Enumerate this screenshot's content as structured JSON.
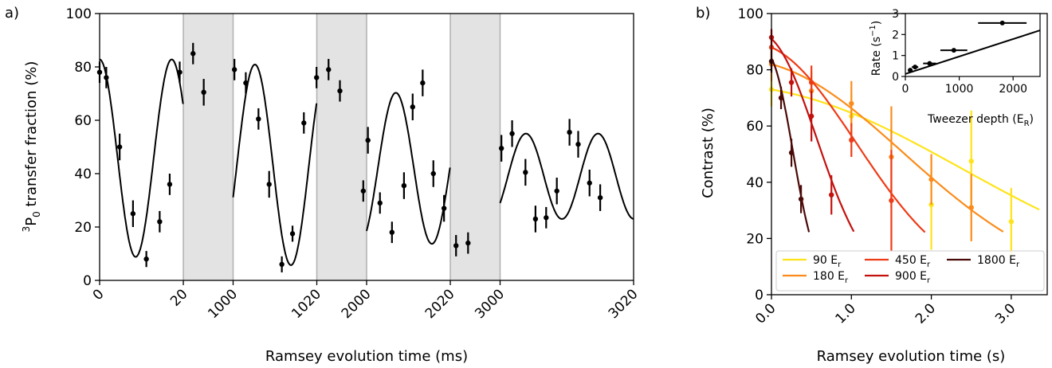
{
  "chart_data": [
    {
      "panel": "a)",
      "type": "scatter",
      "xlabel": "Ramsey evolution time (ms)",
      "ylabel_sup": "3",
      "ylabel_main": "P",
      "ylabel_sub": "0",
      "ylabel_rest": " transfer fraction (%)",
      "ylim": [
        0,
        100
      ],
      "yticks": [
        "0",
        "20",
        "40",
        "60",
        "80",
        "100"
      ],
      "xticks": [
        "0",
        "20",
        "1000",
        "1020",
        "2000",
        "2020",
        "3000",
        "3020"
      ],
      "segments": [
        {
          "x": [
            0,
            20
          ],
          "points": [
            [
              0,
              78
            ],
            [
              1,
              76
            ],
            [
              3,
              50
            ],
            [
              5,
              25
            ],
            [
              7,
              8
            ],
            [
              9,
              22
            ],
            [
              10.5,
              36
            ],
            [
              12,
              78
            ],
            [
              14,
              85
            ],
            [
              15.6,
              70.5
            ]
          ],
          "errs": [
            4,
            4,
            5,
            5,
            3,
            4,
            4,
            4,
            4,
            5
          ],
          "fit": {
            "mean": 45.8,
            "amp": 37.0,
            "phase": 0,
            "period": 10.8,
            "decay": 0,
            "xstart": 0.0,
            "xend": 20.0
          }
        },
        {
          "x": [
            1000,
            1020
          ],
          "points": [
            [
              1000.2,
              79
            ],
            [
              1001.9,
              74
            ],
            [
              1003.8,
              60.5
            ],
            [
              1005.4,
              36
            ],
            [
              1007.3,
              6
            ],
            [
              1008.9,
              17.5
            ],
            [
              1010.6,
              59
            ],
            [
              1012.5,
              76
            ],
            [
              1014.3,
              79
            ],
            [
              1016.0,
              71
            ],
            [
              1019.5,
              33.5
            ]
          ],
          "errs": [
            4,
            4,
            4,
            5,
            3,
            3,
            4,
            4,
            4,
            4,
            4
          ],
          "fit": {
            "mean": 43.3,
            "amp": 37.6,
            "phase": -1.9,
            "period": 10.8,
            "decay": 0,
            "xstart": 1000.0,
            "xend": 1020.0
          }
        },
        {
          "x": [
            2000,
            2020
          ],
          "points": [
            [
              2000.2,
              52.5
            ],
            [
              2002.0,
              29
            ],
            [
              2003.8,
              18
            ],
            [
              2005.6,
              35.5
            ],
            [
              2006.9,
              65
            ],
            [
              2008.4,
              74
            ],
            [
              2010.0,
              40
            ],
            [
              2011.6,
              27
            ],
            [
              2013.4,
              13
            ],
            [
              2015.2,
              14
            ]
          ],
          "errs": [
            5,
            4,
            4,
            5,
            5,
            5,
            5,
            5,
            4,
            4
          ],
          "fit": {
            "mean": 42,
            "amp": 28.3,
            "phase": -2.55,
            "period": 10.8,
            "decay": 0,
            "xstart": 2000.0,
            "xend": 2020.0
          }
        },
        {
          "x": [
            3000,
            3020
          ],
          "points": [
            [
              3000.2,
              49.5
            ],
            [
              3001.8,
              55
            ],
            [
              3003.8,
              40.5
            ],
            [
              3005.3,
              23
            ],
            [
              3006.9,
              23.5
            ],
            [
              3008.5,
              33.5
            ],
            [
              3010.4,
              55.5
            ],
            [
              3011.7,
              51
            ],
            [
              3013.4,
              36.5
            ],
            [
              3015.0,
              31
            ]
          ],
          "errs": [
            5,
            5,
            5,
            5,
            4,
            5,
            5,
            5,
            5,
            5
          ],
          "fit": {
            "mean": 39,
            "amp": 16,
            "phase": -2.25,
            "period": 10.8,
            "decay": 0,
            "xstart": 3000.0,
            "xend": 3020.0
          }
        }
      ]
    },
    {
      "panel": "b)",
      "type": "scatter",
      "xlabel": "Ramsey evolution time (s)",
      "ylabel": "Contrast (%)",
      "xlim": [
        0,
        3.45
      ],
      "ylim": [
        0,
        100
      ],
      "yticks": [
        "0",
        "20",
        "40",
        "60",
        "80",
        "100"
      ],
      "xticks": [
        "0.0",
        "1.0",
        "2.0",
        "3.0"
      ],
      "series": [
        {
          "name": "90 E",
          "sub": "r",
          "color": "#ffe31a",
          "points": [
            [
              0.0,
              73
            ],
            [
              1.0,
              63.5
            ],
            [
              2.0,
              32
            ],
            [
              2.5,
              47.5
            ],
            [
              3.0,
              26
            ]
          ],
          "errs": [
            6,
            8,
            16,
            18,
            12
          ],
          "fit": {
            "c0": 73,
            "tau": 3.6,
            "tend": 3.35
          }
        },
        {
          "name": "180 E",
          "sub": "r",
          "color": "#fb8c1b",
          "points": [
            [
              0.0,
              82
            ],
            [
              0.5,
              72.5
            ],
            [
              1.0,
              68
            ],
            [
              1.5,
              49
            ],
            [
              2.0,
              41
            ],
            [
              2.5,
              31
            ]
          ],
          "errs": [
            6,
            7,
            8,
            18,
            9,
            12
          ],
          "fit": {
            "c0": 82,
            "tau": 2.5,
            "tend": 2.9
          }
        },
        {
          "name": "450 E",
          "sub": "r",
          "color": "#ee3b17",
          "points": [
            [
              0.0,
              88
            ],
            [
              0.5,
              75.5
            ],
            [
              1.0,
              55
            ],
            [
              1.5,
              33.5
            ]
          ],
          "errs": [
            6,
            6,
            6,
            18
          ],
          "fit": {
            "c0": 88,
            "tau": 1.6,
            "tend": 1.92
          }
        },
        {
          "name": "900 E",
          "sub": "r",
          "color": "#c3110e",
          "points": [
            [
              0.0,
              91.5
            ],
            [
              0.25,
              75.5
            ],
            [
              0.5,
              63.5
            ],
            [
              0.75,
              35.5
            ]
          ],
          "errs": [
            3,
            5,
            9,
            7
          ],
          "fit": {
            "c0": 91,
            "tau": 0.85,
            "tend": 1.03
          }
        },
        {
          "name": "1800 E",
          "sub": "r",
          "color": "#4a0a08",
          "points": [
            [
              0.0,
              83
            ],
            [
              0.12,
              70
            ],
            [
              0.25,
              50.5
            ],
            [
              0.37,
              34
            ]
          ],
          "errs": [
            4,
            4,
            5,
            5
          ],
          "fit": {
            "c0": 84,
            "tau": 0.4,
            "tend": 0.47
          }
        }
      ],
      "inset": {
        "xlabel": "Tweezer depth (E",
        "xlabel_sub": "R",
        "xlabel_end": ")",
        "ylabel": "Rate (s",
        "ylabel_sup": "−1",
        "ylabel_end": ")",
        "xlim": [
          0,
          2500
        ],
        "ylim": [
          0,
          3
        ],
        "xticks": [
          "0",
          "1000",
          "2000"
        ],
        "yticks": [
          "0",
          "1",
          "2",
          "3"
        ],
        "points": [
          [
            90,
            0.3
          ],
          [
            180,
            0.45
          ],
          [
            450,
            0.62
          ],
          [
            900,
            1.25
          ],
          [
            1800,
            2.55
          ]
        ],
        "xerrs": [
          40,
          60,
          120,
          250,
          450
        ],
        "fit": [
          [
            0,
            0.12
          ],
          [
            2500,
            2.2
          ]
        ]
      }
    }
  ]
}
